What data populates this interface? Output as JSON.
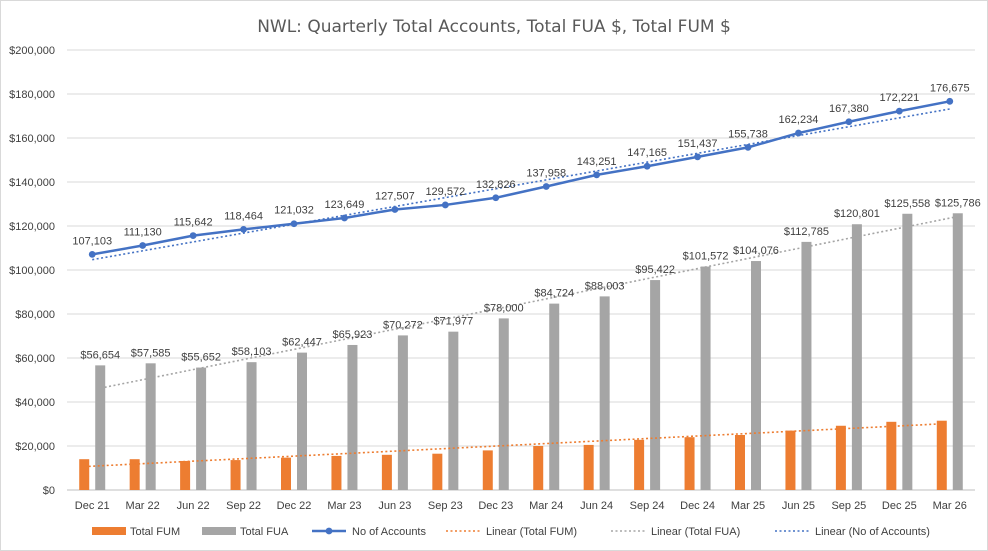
{
  "chart_data": {
    "type": "bar",
    "title": "NWL: Quarterly Total Accounts, Total FUA $, Total FUM $",
    "xlabel": "",
    "ylabel": "",
    "ylim": [
      0,
      200000
    ],
    "y_ticks": [
      "$0",
      "$20,000",
      "$40,000",
      "$60,000",
      "$80,000",
      "$100,000",
      "$120,000",
      "$140,000",
      "$160,000",
      "$180,000",
      "$200,000"
    ],
    "y_tick_values": [
      0,
      20000,
      40000,
      60000,
      80000,
      100000,
      120000,
      140000,
      160000,
      180000,
      200000
    ],
    "grid": true,
    "legend_position": "bottom",
    "categories": [
      "Dec 21",
      "Mar 22",
      "Jun 22",
      "Sep 22",
      "Dec 22",
      "Mar 23",
      "Jun 23",
      "Sep 23",
      "Dec 23",
      "Mar 24",
      "Jun 24",
      "Sep 24",
      "Dec 24",
      "Mar 25",
      "Jun 25",
      "Sep 25",
      "Dec 25",
      "Mar 26"
    ],
    "series": [
      {
        "name": "Total FUM",
        "kind": "bar",
        "color": "#ed7d31",
        "values": [
          14000,
          14000,
          13200,
          13600,
          14700,
          15500,
          16000,
          16500,
          18000,
          20000,
          20500,
          22800,
          24000,
          25000,
          27000,
          29200,
          31000,
          31500
        ]
      },
      {
        "name": "Total FUA",
        "kind": "bar",
        "color": "#a5a5a5",
        "values": [
          56654,
          57585,
          55652,
          58103,
          62447,
          65923,
          70272,
          71977,
          78000,
          84724,
          88003,
          95422,
          101572,
          104076,
          112785,
          120801,
          125558,
          125786
        ],
        "labels": [
          "$56,654",
          "$57,585",
          "$55,652",
          "$58,103",
          "$62,447",
          "$65,923",
          "$70,272",
          "$71,977",
          "$78,000",
          "$84,724",
          "$88,003",
          "$95,422",
          "$101,572",
          "$104,076",
          "$112,785",
          "$120,801",
          "$125,558",
          "$125,786"
        ]
      },
      {
        "name": "No of Accounts",
        "kind": "line",
        "color": "#4472c4",
        "values": [
          107103,
          111130,
          115642,
          118464,
          121032,
          123649,
          127507,
          129572,
          132826,
          137958,
          143251,
          147165,
          151437,
          155738,
          162234,
          167380,
          172221,
          176675
        ],
        "labels": [
          "107,103",
          "111,130",
          "115,642",
          "118,464",
          "121,032",
          "123,649",
          "127,507",
          "129,572",
          "132,826",
          "137,958",
          "143,251",
          "147,165",
          "151,437",
          "155,738",
          "162,234",
          "167,380",
          "172,221",
          "176,675"
        ]
      }
    ],
    "trendlines": [
      {
        "name": "Linear (Total FUM)",
        "of": "Total FUM",
        "color": "#ed7d31"
      },
      {
        "name": "Linear (Total FUA)",
        "of": "Total FUA",
        "color": "#a5a5a5"
      },
      {
        "name": "Linear (No of Accounts)",
        "of": "No of Accounts",
        "color": "#4472c4"
      }
    ]
  }
}
